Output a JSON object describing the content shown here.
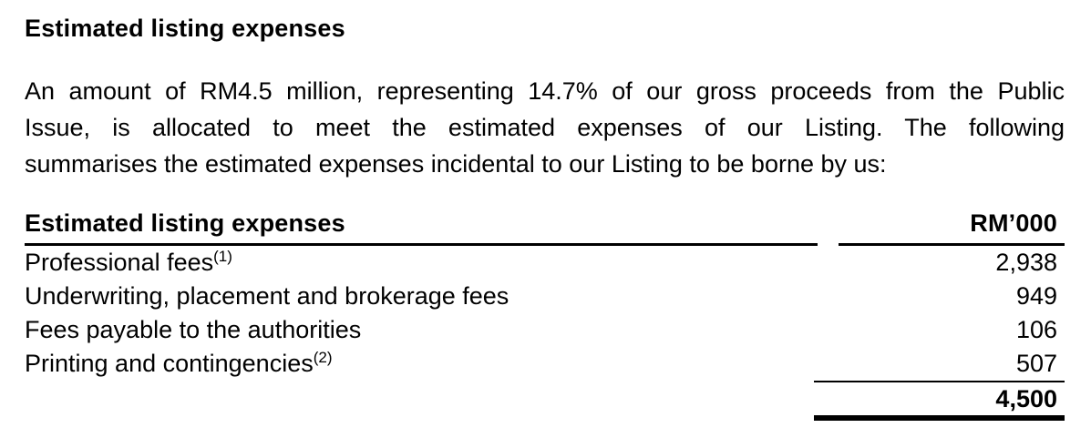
{
  "colors": {
    "text": "#000000",
    "background": "#ffffff",
    "rule": "#000000"
  },
  "document": {
    "title": "Estimated listing expenses",
    "paragraph_lines": [
      "An amount of RM4.5 million, representing 14.7% of our gross proceeds from the Public",
      "Issue, is allocated to meet the estimated expenses of our Listing. The following",
      "summarises the estimated expenses incidental to our Listing to be borne by us:"
    ]
  },
  "table": {
    "header": {
      "label": "Estimated listing expenses",
      "unit": "RM’000"
    },
    "rows": [
      {
        "label": "Professional fees",
        "footnote": "(1)",
        "value": "2,938"
      },
      {
        "label": "Underwriting, placement and brokerage fees",
        "footnote": "",
        "value": "949"
      },
      {
        "label": "Fees payable to the authorities",
        "footnote": "",
        "value": "106"
      },
      {
        "label": "Printing and contingencies",
        "footnote": "(2)",
        "value": "507"
      }
    ],
    "total": {
      "value": "4,500"
    }
  }
}
